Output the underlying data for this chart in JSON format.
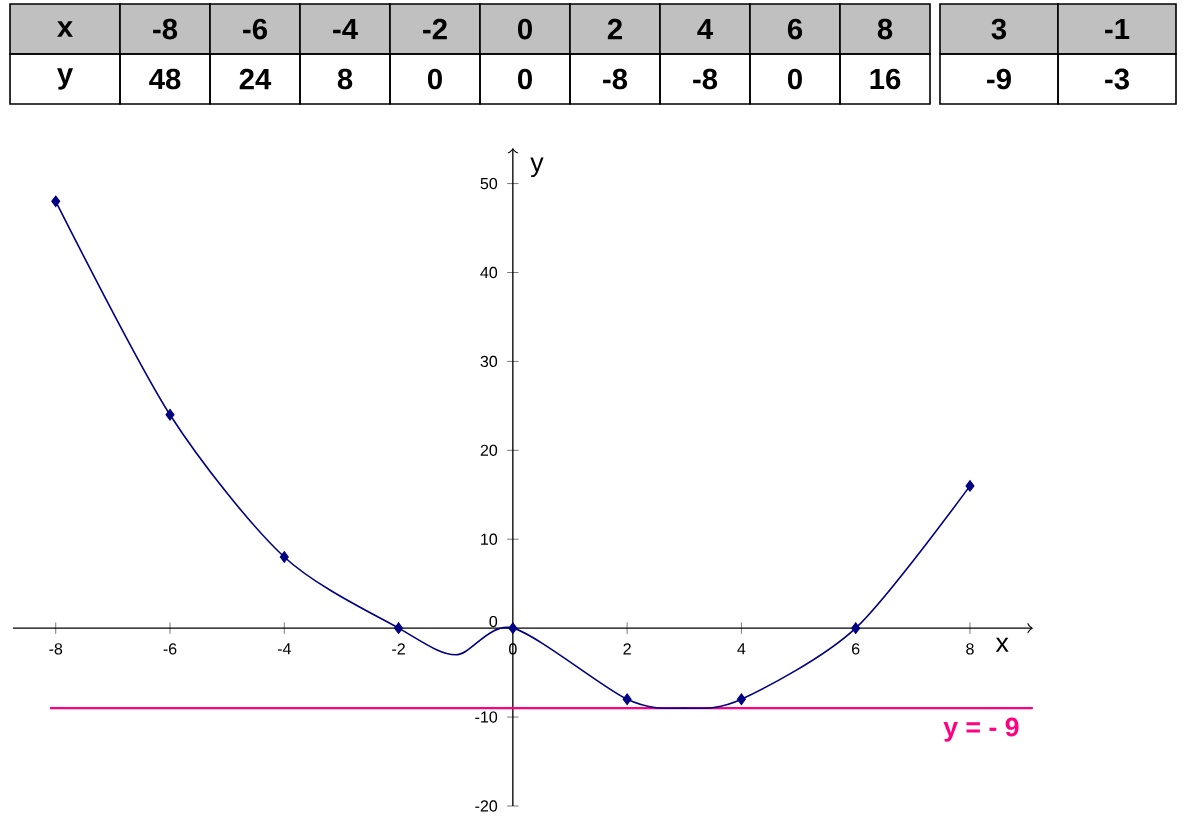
{
  "chart_data": {
    "type": "line",
    "xlabel": "x",
    "ylabel": "y",
    "annotations": [
      "x",
      "-8",
      "-6",
      "-4",
      "-2",
      "0",
      "2",
      "4",
      "6",
      "8",
      "3",
      "-1",
      "y",
      "48",
      "24",
      "8",
      "0",
      "0",
      "-8",
      "-8",
      "0",
      "16",
      "-9",
      "-3"
    ],
    "series": [
      {
        "color": "#000080",
        "marker": "none",
        "x": [
          -8,
          -6,
          -4,
          -2,
          -1,
          0,
          2,
          3,
          4,
          6,
          8
        ],
        "values": [
          48,
          24,
          8,
          0,
          -3,
          0,
          -8,
          -9,
          -8,
          0,
          16
        ]
      },
      {
        "type": "scatter",
        "color": "#000080",
        "marker": "diamond",
        "x": [
          -8,
          -6,
          -4,
          -2,
          0,
          2,
          4,
          6,
          8
        ],
        "values": [
          48,
          24,
          8,
          0,
          0,
          -8,
          -8,
          0,
          16
        ]
      }
    ],
    "xlim": [
      -8.75,
      9.1
    ],
    "ylim": [
      -20,
      54
    ],
    "xticks": [
      -8,
      -6,
      -4,
      -2,
      0,
      2,
      4,
      6,
      8
    ],
    "yticks": [
      -20,
      -10,
      0,
      10,
      20,
      30,
      40,
      50
    ],
    "ref_lines": [
      {
        "axis": "y",
        "value": -9,
        "label": "y = - 9",
        "color": "#ff0080"
      }
    ],
    "grid": false
  }
}
